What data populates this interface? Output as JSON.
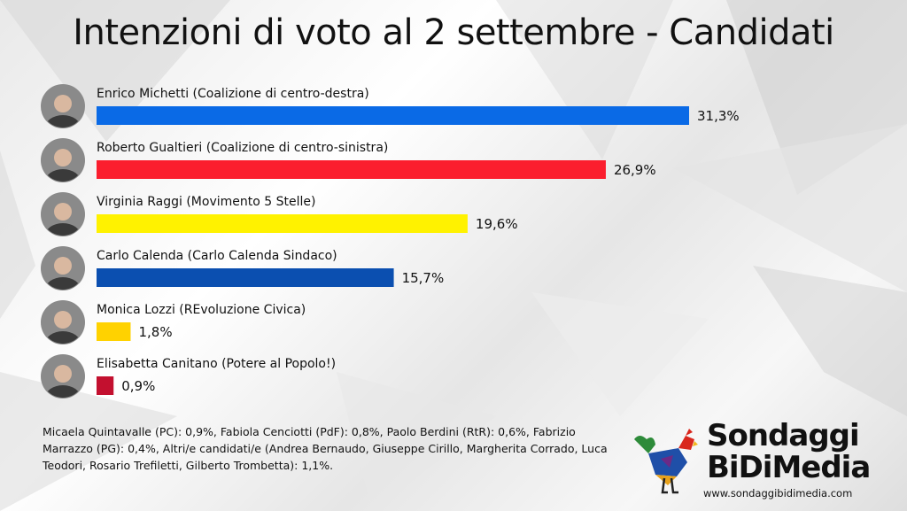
{
  "title": "Intenzioni di voto al 2 settembre - Candidati",
  "colors": {
    "michetti": "#0a6ae6",
    "gualtieri": "#fb1e2e",
    "raggi": "#fff200",
    "calenda": "#0b4fb0",
    "lozzi": "#ffd200",
    "canitano": "#c3102f"
  },
  "chart_data": {
    "type": "bar",
    "orientation": "horizontal",
    "categories": [
      "Enrico Michetti (Coalizione di centro-destra)",
      "Roberto Gualtieri (Coalizione di centro-sinistra)",
      "Virginia Raggi (Movimento 5 Stelle)",
      "Carlo Calenda (Carlo Calenda Sindaco)",
      "Monica Lozzi (REvoluzione Civica)",
      "Elisabetta Canitano (Potere al Popolo!)"
    ],
    "values": [
      31.3,
      26.9,
      19.6,
      15.7,
      1.8,
      0.9
    ],
    "value_labels": [
      "31,3%",
      "26,9%",
      "19,6%",
      "15,7%",
      "1,8%",
      "0,9%"
    ],
    "bar_colors": [
      "#0a6ae6",
      "#fb1e2e",
      "#fff200",
      "#0b4fb0",
      "#ffd200",
      "#c3102f"
    ],
    "avatar_icons": [
      "candidate-photo-icon",
      "candidate-photo-icon",
      "candidate-photo-icon",
      "candidate-photo-icon",
      "candidate-photo-icon",
      "candidate-photo-icon"
    ],
    "grid": false,
    "xlim": [
      0,
      31.3
    ]
  },
  "footnote": "Micaela Quintavalle (PC): 0,9%, Fabiola Cenciotti (PdF): 0,8%, Paolo Berdini (RtR): 0,6%, Fabrizio Marrazzo (PG): 0,4%, Altri/e candidati/e (Andrea Bernaudo, Giuseppe Cirillo, Margherita Corrado, Luca Teodori, Rosario Trefiletti, Gilberto Trombetta): 1,1%.",
  "logo": {
    "icon": "rooster-logo-icon",
    "line1": "Sondaggi",
    "line2": "BiDiMedia",
    "url": "www.sondaggibidimedia.com"
  }
}
